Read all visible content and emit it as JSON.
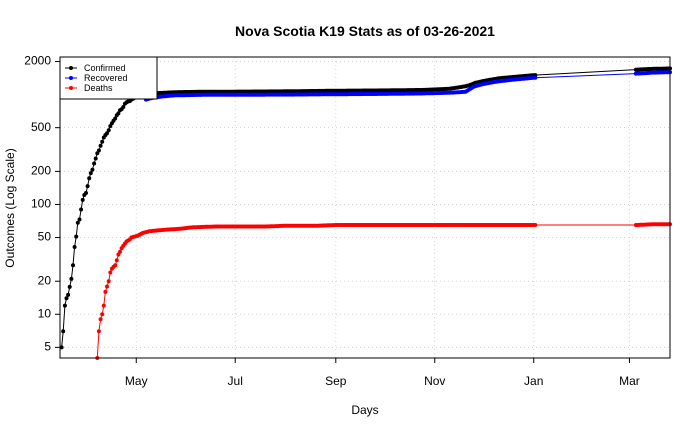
{
  "chart_data": {
    "type": "scatter",
    "title": "Nova Scotia K19 Stats as of 03-26-2021",
    "xlabel": "Days",
    "ylabel": "Outcomes (Log Scale)",
    "y_scale": "log",
    "xlim": [
      "2020-03-15",
      "2021-03-26"
    ],
    "ylim": [
      4,
      2200
    ],
    "grid": true,
    "legend_position": "top-left",
    "x_ticks": [
      {
        "date": "2020-05-01",
        "label": "May"
      },
      {
        "date": "2020-07-01",
        "label": "Jul"
      },
      {
        "date": "2020-09-01",
        "label": "Sep"
      },
      {
        "date": "2020-11-01",
        "label": "Nov"
      },
      {
        "date": "2021-01-01",
        "label": "Jan"
      },
      {
        "date": "2021-03-01",
        "label": "Mar"
      }
    ],
    "y_ticks": [
      5,
      10,
      20,
      50,
      100,
      200,
      500,
      2000
    ],
    "series": [
      {
        "name": "Confirmed",
        "color": "#000000",
        "points": [
          [
            "2020-03-16",
            5
          ],
          [
            "2020-03-17",
            7
          ],
          [
            "2020-03-18",
            12
          ],
          [
            "2020-03-19",
            14
          ],
          [
            "2020-03-20",
            15
          ],
          [
            "2020-03-22",
            21
          ],
          [
            "2020-03-23",
            28
          ],
          [
            "2020-03-24",
            41
          ],
          [
            "2020-03-25",
            51
          ],
          [
            "2020-03-26",
            68
          ],
          [
            "2020-03-27",
            73
          ],
          [
            "2020-03-28",
            90
          ],
          [
            "2020-03-29",
            110
          ],
          [
            "2020-03-30",
            122
          ],
          [
            "2020-03-31",
            127
          ],
          [
            "2020-04-01",
            147
          ],
          [
            "2020-04-02",
            173
          ],
          [
            "2020-04-03",
            193
          ],
          [
            "2020-04-04",
            207
          ],
          [
            "2020-04-05",
            236
          ],
          [
            "2020-04-06",
            262
          ],
          [
            "2020-04-07",
            293
          ],
          [
            "2020-04-08",
            310
          ],
          [
            "2020-04-09",
            342
          ],
          [
            "2020-04-10",
            373
          ],
          [
            "2020-04-11",
            407
          ],
          [
            "2020-04-12",
            428
          ],
          [
            "2020-04-13",
            445
          ],
          [
            "2020-04-14",
            474
          ],
          [
            "2020-04-15",
            517
          ],
          [
            "2020-04-16",
            549
          ],
          [
            "2020-04-17",
            579
          ],
          [
            "2020-04-18",
            606
          ],
          [
            "2020-04-19",
            649
          ],
          [
            "2020-04-20",
            675
          ],
          [
            "2020-04-21",
            721
          ],
          [
            "2020-04-22",
            737
          ],
          [
            "2020-04-23",
            772
          ],
          [
            "2020-04-24",
            827
          ],
          [
            "2020-04-25",
            850
          ],
          [
            "2020-04-26",
            865
          ],
          [
            "2020-04-27",
            873
          ],
          [
            "2020-04-28",
            900
          ],
          [
            "2020-04-30",
            935
          ],
          [
            "2020-05-03",
            963
          ],
          [
            "2020-05-06",
            998
          ],
          [
            "2020-05-10",
            1008
          ],
          [
            "2020-05-15",
            1034
          ],
          [
            "2020-05-25",
            1052
          ],
          [
            "2020-06-10",
            1061
          ],
          [
            "2020-07-01",
            1064
          ],
          [
            "2020-08-01",
            1071
          ],
          [
            "2020-09-01",
            1085
          ],
          [
            "2020-10-01",
            1092
          ],
          [
            "2020-10-25",
            1103
          ],
          [
            "2020-11-10",
            1130
          ],
          [
            "2020-11-18",
            1177
          ],
          [
            "2020-11-22",
            1210
          ],
          [
            "2020-11-26",
            1280
          ],
          [
            "2020-12-01",
            1330
          ],
          [
            "2020-12-10",
            1405
          ],
          [
            "2020-12-20",
            1450
          ],
          [
            "2020-12-31",
            1500
          ],
          [
            "2021-03-08",
            1695
          ],
          [
            "2021-03-15",
            1715
          ],
          [
            "2021-03-26",
            1730
          ]
        ]
      },
      {
        "name": "Recovered",
        "color": "#0000ff",
        "points": [
          [
            "2020-05-07",
            900
          ],
          [
            "2020-05-09",
            920
          ],
          [
            "2020-05-12",
            940
          ],
          [
            "2020-05-18",
            965
          ],
          [
            "2020-05-25",
            985
          ],
          [
            "2020-06-10",
            995
          ],
          [
            "2020-07-01",
            998
          ],
          [
            "2020-08-01",
            1000
          ],
          [
            "2020-09-01",
            1008
          ],
          [
            "2020-10-01",
            1015
          ],
          [
            "2020-10-25",
            1025
          ],
          [
            "2020-11-10",
            1040
          ],
          [
            "2020-11-20",
            1060
          ],
          [
            "2020-11-25",
            1180
          ],
          [
            "2020-12-01",
            1250
          ],
          [
            "2020-12-10",
            1320
          ],
          [
            "2020-12-20",
            1370
          ],
          [
            "2020-12-31",
            1420
          ],
          [
            "2021-03-08",
            1560
          ],
          [
            "2021-03-15",
            1585
          ],
          [
            "2021-03-26",
            1600
          ]
        ]
      },
      {
        "name": "Deaths",
        "color": "#ff0000",
        "points": [
          [
            "2020-04-07",
            4
          ],
          [
            "2020-04-08",
            7
          ],
          [
            "2020-04-09",
            9
          ],
          [
            "2020-04-10",
            10
          ],
          [
            "2020-04-11",
            12
          ],
          [
            "2020-04-12",
            16
          ],
          [
            "2020-04-14",
            20
          ],
          [
            "2020-04-15",
            24
          ],
          [
            "2020-04-16",
            26
          ],
          [
            "2020-04-17",
            27
          ],
          [
            "2020-04-18",
            28
          ],
          [
            "2020-04-19",
            31
          ],
          [
            "2020-04-20",
            35
          ],
          [
            "2020-04-21",
            37
          ],
          [
            "2020-04-22",
            40
          ],
          [
            "2020-04-23",
            42
          ],
          [
            "2020-04-24",
            44
          ],
          [
            "2020-04-25",
            46
          ],
          [
            "2020-04-26",
            47
          ],
          [
            "2020-04-27",
            48
          ],
          [
            "2020-04-28",
            50
          ],
          [
            "2020-04-30",
            51
          ],
          [
            "2020-05-02",
            52
          ],
          [
            "2020-05-05",
            55
          ],
          [
            "2020-05-09",
            57
          ],
          [
            "2020-05-14",
            58
          ],
          [
            "2020-05-20",
            59
          ],
          [
            "2020-05-28",
            60
          ],
          [
            "2020-06-05",
            62
          ],
          [
            "2020-06-20",
            63
          ],
          [
            "2020-07-05",
            63
          ],
          [
            "2020-07-20",
            63
          ],
          [
            "2020-08-01",
            64
          ],
          [
            "2020-08-20",
            64
          ],
          [
            "2020-09-01",
            65
          ],
          [
            "2020-10-01",
            65
          ],
          [
            "2020-11-01",
            65
          ],
          [
            "2020-12-01",
            65
          ],
          [
            "2020-12-31",
            65
          ],
          [
            "2021-03-06",
            65
          ],
          [
            "2021-03-15",
            66
          ],
          [
            "2021-03-26",
            66
          ]
        ]
      }
    ]
  }
}
